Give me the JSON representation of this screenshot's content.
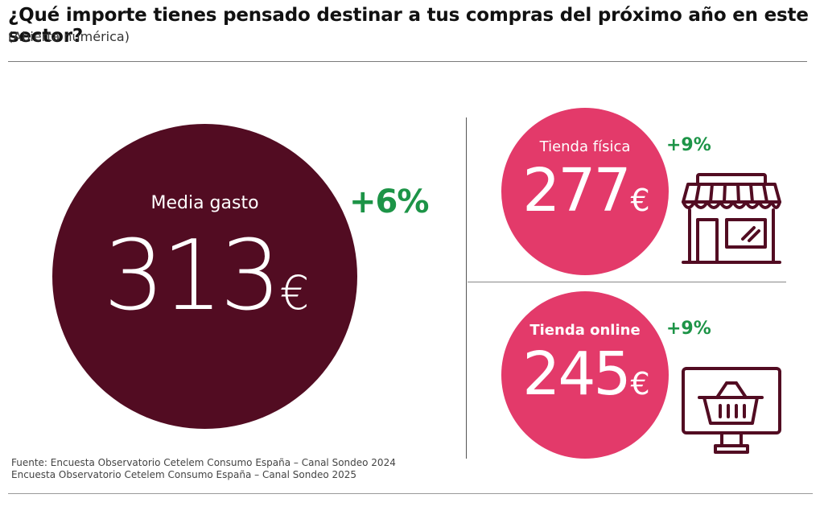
{
  "header": {
    "title": "¿Qué importe tienes pensado destinar a tus compras del próximo año en este sector?",
    "subtitle": "(Abierta numérica)"
  },
  "main_stat": {
    "label": "Media gasto",
    "value": "313",
    "currency": "€",
    "change": "+6%"
  },
  "channels": [
    {
      "label": "Tienda física",
      "value": "277",
      "currency": "€",
      "change": "+9%",
      "icon": "store-icon"
    },
    {
      "label": "Tienda online",
      "value": "245",
      "currency": "€",
      "change": "+9%",
      "icon": "online-shop-icon"
    }
  ],
  "source": {
    "line1": "Fuente: Encuesta Observatorio Cetelem Consumo España – Canal Sondeo 2024",
    "line2": "Encuesta Observatorio Cetelem Consumo España – Canal Sondeo 2025"
  },
  "colors": {
    "main_circle": "#520c22",
    "channel_circle": "#e33a6a",
    "positive_change": "#1d9447",
    "icon_stroke": "#520c22"
  }
}
